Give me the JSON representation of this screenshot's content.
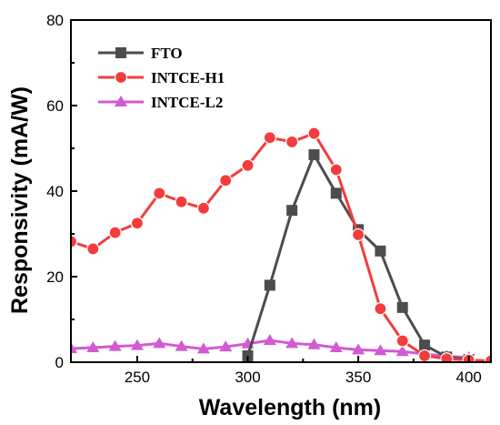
{
  "chart_data": {
    "type": "line",
    "xlabel": "Wavelength (nm)",
    "ylabel": "Responsivity (mA/W)",
    "xlim": [
      220,
      410
    ],
    "ylim": [
      0,
      80
    ],
    "xticks": [
      250,
      300,
      350,
      400
    ],
    "yticks": [
      0,
      20,
      40,
      60,
      80
    ],
    "grid": false,
    "legend_position": "top-left",
    "series": [
      {
        "name": "FTO",
        "color": "#4d4d4d",
        "marker": "square",
        "x": [
          300,
          310,
          320,
          330,
          340,
          350,
          360,
          370,
          380,
          390,
          400
        ],
        "y": [
          1.5,
          18,
          35.5,
          48.5,
          39.5,
          31,
          26,
          12.8,
          4,
          1.2,
          0.6
        ]
      },
      {
        "name": "INTCE-H1",
        "color": "#f43c3c",
        "marker": "circle",
        "x": [
          220,
          230,
          240,
          250,
          260,
          270,
          280,
          290,
          300,
          310,
          320,
          330,
          340,
          350,
          360,
          370,
          380,
          390,
          400,
          410
        ],
        "y": [
          28.2,
          26.5,
          30.3,
          32.5,
          39.5,
          37.5,
          36,
          42.5,
          46,
          52.5,
          51.5,
          53.5,
          45,
          29.8,
          12.5,
          5,
          1.5,
          0.8,
          0.5,
          0.3
        ]
      },
      {
        "name": "INTCE-L2",
        "color": "#d25ad2",
        "marker": "triangle",
        "x": [
          220,
          230,
          240,
          250,
          260,
          270,
          280,
          290,
          300,
          310,
          320,
          330,
          340,
          350,
          360,
          370,
          380,
          390,
          400
        ],
        "y": [
          3.2,
          3.4,
          3.7,
          3.9,
          4.4,
          3.7,
          3.1,
          3.6,
          4.3,
          5.1,
          4.4,
          4.1,
          3.4,
          2.9,
          2.7,
          2.5,
          1.9,
          1.4,
          1.1
        ]
      }
    ]
  }
}
